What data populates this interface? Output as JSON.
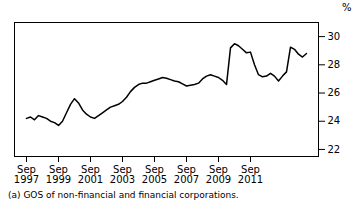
{
  "chart_data": {
    "type": "line",
    "ylabel": "%",
    "footnote": "(a) GOS of non-financial and financial corporations.",
    "ylim": [
      21.5,
      31.0
    ],
    "yticks": [
      22,
      24,
      26,
      28,
      30
    ],
    "color": "#000000",
    "categories": [
      "Sep\n1997",
      null,
      null,
      null,
      null,
      null,
      null,
      null,
      "Sep\n1999",
      null,
      null,
      null,
      null,
      null,
      null,
      null,
      "Sep\n2001",
      null,
      null,
      null,
      null,
      null,
      null,
      null,
      "Sep\n2003",
      null,
      null,
      null,
      null,
      null,
      null,
      null,
      "Sep\n2005",
      null,
      null,
      null,
      null,
      null,
      null,
      null,
      "Sep\n2007",
      null,
      null,
      null,
      null,
      null,
      null,
      null,
      "Sep\n2009",
      null,
      null,
      null,
      null,
      null,
      null,
      null,
      "Sep\n2011",
      null,
      null,
      null,
      null,
      null,
      null,
      null,
      null,
      null,
      null,
      null,
      null,
      null,
      null
    ],
    "values": [
      24.2,
      24.3,
      24.1,
      24.4,
      24.3,
      24.2,
      24.0,
      23.9,
      23.7,
      24.0,
      24.6,
      25.2,
      25.6,
      25.3,
      24.8,
      24.5,
      24.3,
      24.2,
      24.4,
      24.6,
      24.8,
      25.0,
      25.1,
      25.2,
      25.4,
      25.7,
      26.1,
      26.4,
      26.6,
      26.7,
      26.7,
      26.8,
      26.9,
      27.0,
      27.1,
      27.05,
      26.95,
      26.85,
      26.8,
      26.65,
      26.5,
      26.55,
      26.6,
      26.7,
      27.0,
      27.2,
      27.3,
      27.2,
      27.1,
      26.9,
      26.6,
      29.2,
      29.5,
      29.35,
      29.1,
      28.85,
      28.9,
      28.0,
      27.3,
      27.15,
      27.2,
      27.4,
      27.2,
      26.85,
      27.2,
      27.5,
      29.25,
      29.1,
      28.75,
      28.55,
      28.8
    ]
  }
}
